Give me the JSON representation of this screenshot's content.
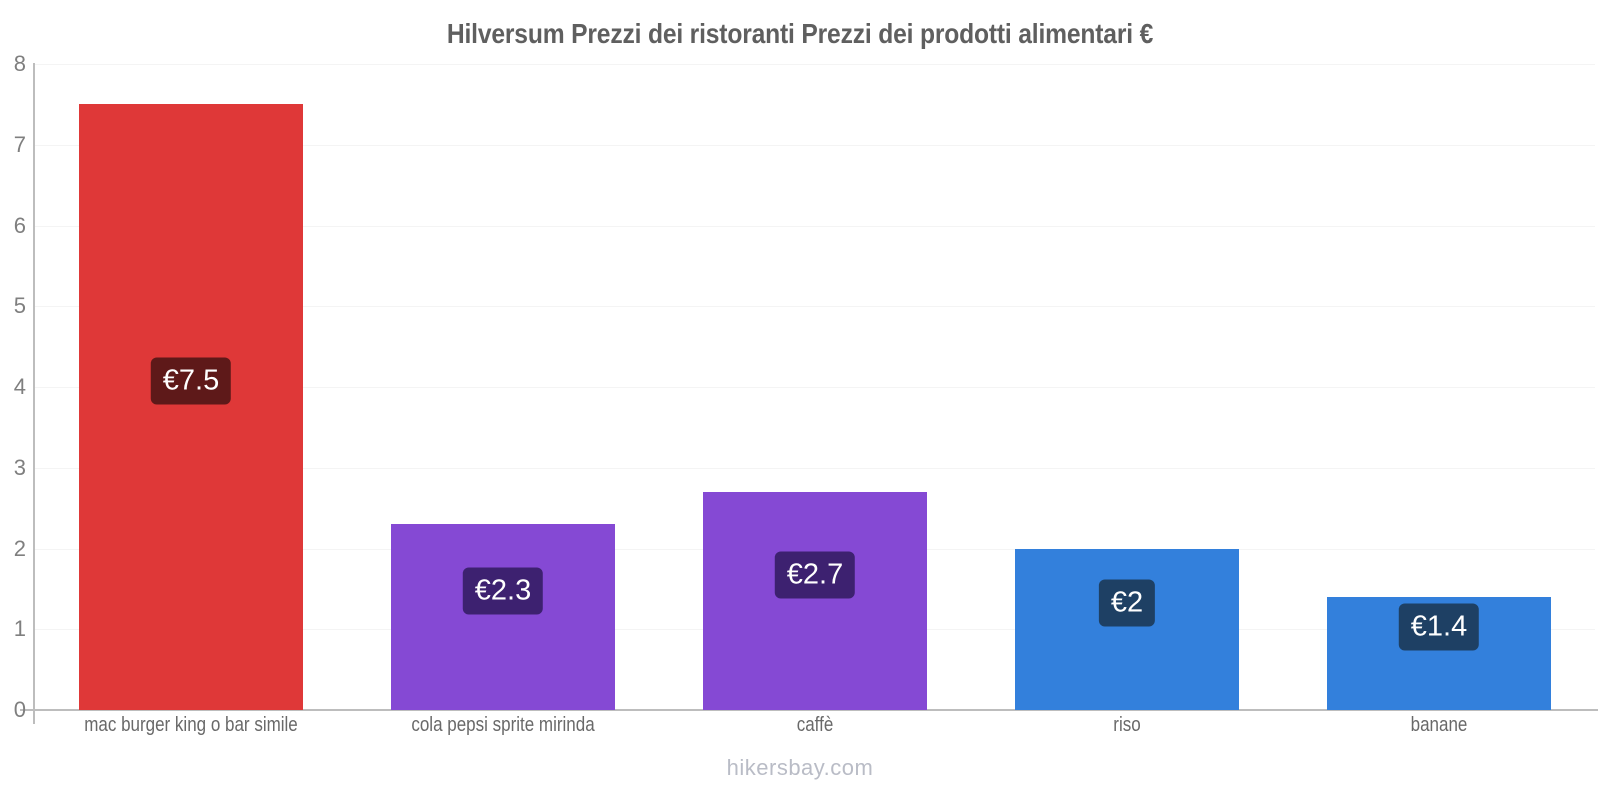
{
  "title": "Hilversum Prezzi dei ristoranti Prezzi dei prodotti alimentari €",
  "footer": "hikersbay.com",
  "colors": {
    "background": "#ffffff",
    "title_text": "#5f5f5f",
    "axis_line": "#bdbdbd",
    "gridline": "#f4f4f4",
    "y_tick_text": "#7f7f7f",
    "x_label_text": "#696969",
    "value_text": "#ffffff",
    "footer_text": "#b9bcc6"
  },
  "chart_data": {
    "type": "bar",
    "title": "Hilversum Prezzi dei ristoranti Prezzi dei prodotti alimentari €",
    "categories": [
      "mac burger king o bar simile",
      "cola pepsi sprite mirinda",
      "caffè",
      "riso",
      "banane"
    ],
    "values": [
      7.5,
      2.3,
      2.7,
      2,
      1.4
    ],
    "value_labels": [
      "€7.5",
      "€2.3",
      "€2.7",
      "€2",
      "€1.4"
    ],
    "bar_colors": [
      "#df3838",
      "#8549d4",
      "#8549d4",
      "#3380dc",
      "#3380dc"
    ],
    "badge_colors": [
      "#5e1919",
      "#3d2170",
      "#3d2170",
      "#1e4064",
      "#1e4064"
    ],
    "currency": "€",
    "xlabel": "",
    "ylabel": "",
    "ylim": [
      0,
      8
    ],
    "yticks": [
      0,
      1,
      2,
      3,
      4,
      5,
      6,
      7,
      8
    ],
    "grid": true,
    "legend": "none"
  }
}
